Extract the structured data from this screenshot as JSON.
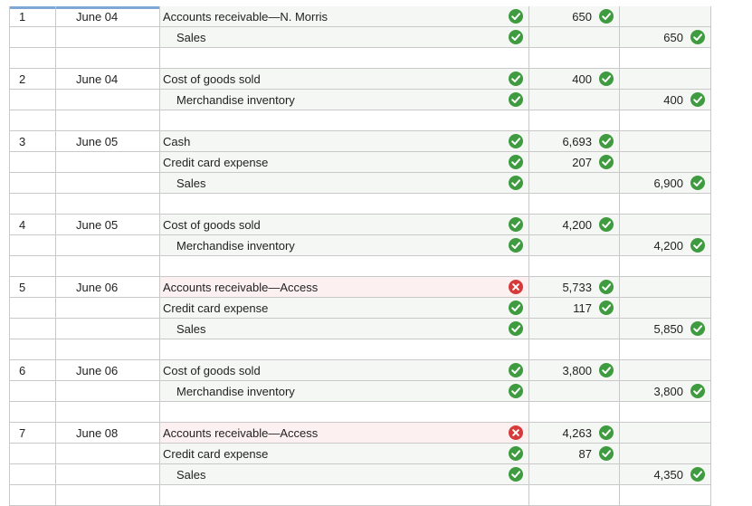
{
  "entries": [
    {
      "no": "1",
      "date": "June 04",
      "lines": [
        {
          "account": "Accounts receivable—N. Morris",
          "indent": false,
          "debit": "650",
          "credit": "",
          "status": "ok"
        },
        {
          "account": "Sales",
          "indent": true,
          "debit": "",
          "credit": "650",
          "status": "ok"
        }
      ]
    },
    {
      "no": "2",
      "date": "June 04",
      "lines": [
        {
          "account": "Cost of goods sold",
          "indent": false,
          "debit": "400",
          "credit": "",
          "status": "ok"
        },
        {
          "account": "Merchandise inventory",
          "indent": true,
          "debit": "",
          "credit": "400",
          "status": "ok"
        }
      ]
    },
    {
      "no": "3",
      "date": "June 05",
      "lines": [
        {
          "account": "Cash",
          "indent": false,
          "debit": "6,693",
          "credit": "",
          "status": "ok"
        },
        {
          "account": "Credit card expense",
          "indent": false,
          "debit": "207",
          "credit": "",
          "status": "ok"
        },
        {
          "account": "Sales",
          "indent": true,
          "debit": "",
          "credit": "6,900",
          "status": "ok"
        }
      ]
    },
    {
      "no": "4",
      "date": "June 05",
      "lines": [
        {
          "account": "Cost of goods sold",
          "indent": false,
          "debit": "4,200",
          "credit": "",
          "status": "ok"
        },
        {
          "account": "Merchandise inventory",
          "indent": true,
          "debit": "",
          "credit": "4,200",
          "status": "ok"
        }
      ]
    },
    {
      "no": "5",
      "date": "June 06",
      "lines": [
        {
          "account": "Accounts receivable—Access",
          "indent": false,
          "debit": "5,733",
          "credit": "",
          "status": "error"
        },
        {
          "account": "Credit card expense",
          "indent": false,
          "debit": "117",
          "credit": "",
          "status": "ok"
        },
        {
          "account": "Sales",
          "indent": true,
          "debit": "",
          "credit": "5,850",
          "status": "ok"
        }
      ]
    },
    {
      "no": "6",
      "date": "June 06",
      "lines": [
        {
          "account": "Cost of goods sold",
          "indent": false,
          "debit": "3,800",
          "credit": "",
          "status": "ok"
        },
        {
          "account": "Merchandise inventory",
          "indent": true,
          "debit": "",
          "credit": "3,800",
          "status": "ok"
        }
      ]
    },
    {
      "no": "7",
      "date": "June 08",
      "lines": [
        {
          "account": "Accounts receivable—Access",
          "indent": false,
          "debit": "4,263",
          "credit": "",
          "status": "error"
        },
        {
          "account": "Credit card expense",
          "indent": false,
          "debit": "87",
          "credit": "",
          "status": "ok"
        },
        {
          "account": "Sales",
          "indent": true,
          "debit": "",
          "credit": "4,350",
          "status": "ok"
        }
      ]
    }
  ],
  "icons": {
    "ok": "check-circle-icon",
    "error": "x-circle-icon"
  },
  "colors": {
    "ok": "#3f9b3f",
    "error": "#d63a3a",
    "header_line": "#7ea7d6",
    "grid": "#c9c9c9"
  }
}
